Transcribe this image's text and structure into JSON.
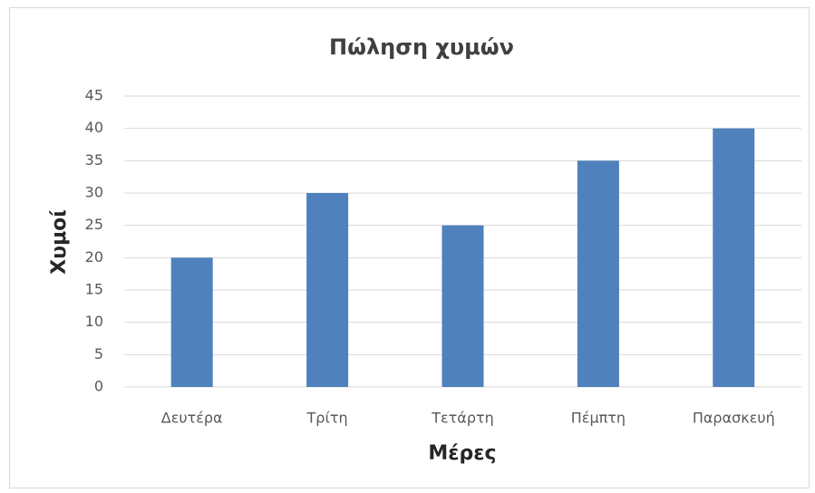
{
  "chart_data": {
    "type": "bar",
    "title": "Πώληση χυμών",
    "xlabel": "Μέρες",
    "ylabel": "Χυμοί",
    "categories": [
      "Δευτέρα",
      "Τρίτη",
      "Τετάρτη",
      "Πέμπτη",
      "Παρασκευή"
    ],
    "values": [
      20,
      30,
      25,
      35,
      40
    ],
    "color": "#4f81bd",
    "ylim": [
      0,
      45
    ],
    "yticks": [
      0,
      5,
      10,
      15,
      20,
      25,
      30,
      35,
      40,
      45
    ],
    "grid": true
  }
}
